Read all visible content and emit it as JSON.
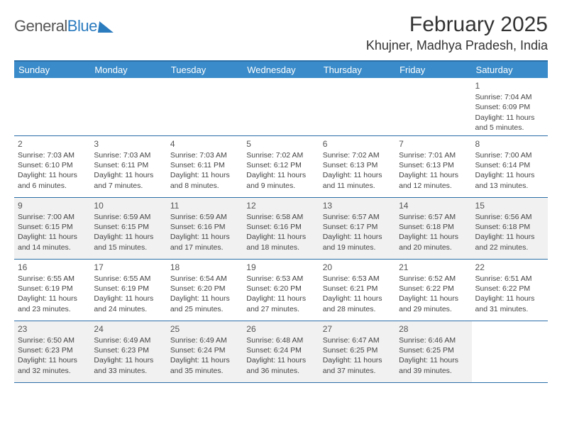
{
  "logo": {
    "text1": "General",
    "text2": "Blue"
  },
  "title": "February 2025",
  "location": "Khujner, Madhya Pradesh, India",
  "colors": {
    "header_bg": "#3a8bc9",
    "border": "#2b6fa8",
    "shaded": "#f1f1f1",
    "text": "#444444",
    "logo_blue": "#2b7bbf"
  },
  "weekdays": [
    "Sunday",
    "Monday",
    "Tuesday",
    "Wednesday",
    "Thursday",
    "Friday",
    "Saturday"
  ],
  "weeks": [
    [
      null,
      null,
      null,
      null,
      null,
      null,
      {
        "n": "1",
        "sr": "Sunrise: 7:04 AM",
        "ss": "Sunset: 6:09 PM",
        "d1": "Daylight: 11 hours",
        "d2": "and 5 minutes."
      }
    ],
    [
      {
        "n": "2",
        "sr": "Sunrise: 7:03 AM",
        "ss": "Sunset: 6:10 PM",
        "d1": "Daylight: 11 hours",
        "d2": "and 6 minutes."
      },
      {
        "n": "3",
        "sr": "Sunrise: 7:03 AM",
        "ss": "Sunset: 6:11 PM",
        "d1": "Daylight: 11 hours",
        "d2": "and 7 minutes."
      },
      {
        "n": "4",
        "sr": "Sunrise: 7:03 AM",
        "ss": "Sunset: 6:11 PM",
        "d1": "Daylight: 11 hours",
        "d2": "and 8 minutes."
      },
      {
        "n": "5",
        "sr": "Sunrise: 7:02 AM",
        "ss": "Sunset: 6:12 PM",
        "d1": "Daylight: 11 hours",
        "d2": "and 9 minutes."
      },
      {
        "n": "6",
        "sr": "Sunrise: 7:02 AM",
        "ss": "Sunset: 6:13 PM",
        "d1": "Daylight: 11 hours",
        "d2": "and 11 minutes."
      },
      {
        "n": "7",
        "sr": "Sunrise: 7:01 AM",
        "ss": "Sunset: 6:13 PM",
        "d1": "Daylight: 11 hours",
        "d2": "and 12 minutes."
      },
      {
        "n": "8",
        "sr": "Sunrise: 7:00 AM",
        "ss": "Sunset: 6:14 PM",
        "d1": "Daylight: 11 hours",
        "d2": "and 13 minutes."
      }
    ],
    [
      {
        "n": "9",
        "sr": "Sunrise: 7:00 AM",
        "ss": "Sunset: 6:15 PM",
        "d1": "Daylight: 11 hours",
        "d2": "and 14 minutes."
      },
      {
        "n": "10",
        "sr": "Sunrise: 6:59 AM",
        "ss": "Sunset: 6:15 PM",
        "d1": "Daylight: 11 hours",
        "d2": "and 15 minutes."
      },
      {
        "n": "11",
        "sr": "Sunrise: 6:59 AM",
        "ss": "Sunset: 6:16 PM",
        "d1": "Daylight: 11 hours",
        "d2": "and 17 minutes."
      },
      {
        "n": "12",
        "sr": "Sunrise: 6:58 AM",
        "ss": "Sunset: 6:16 PM",
        "d1": "Daylight: 11 hours",
        "d2": "and 18 minutes."
      },
      {
        "n": "13",
        "sr": "Sunrise: 6:57 AM",
        "ss": "Sunset: 6:17 PM",
        "d1": "Daylight: 11 hours",
        "d2": "and 19 minutes."
      },
      {
        "n": "14",
        "sr": "Sunrise: 6:57 AM",
        "ss": "Sunset: 6:18 PM",
        "d1": "Daylight: 11 hours",
        "d2": "and 20 minutes."
      },
      {
        "n": "15",
        "sr": "Sunrise: 6:56 AM",
        "ss": "Sunset: 6:18 PM",
        "d1": "Daylight: 11 hours",
        "d2": "and 22 minutes."
      }
    ],
    [
      {
        "n": "16",
        "sr": "Sunrise: 6:55 AM",
        "ss": "Sunset: 6:19 PM",
        "d1": "Daylight: 11 hours",
        "d2": "and 23 minutes."
      },
      {
        "n": "17",
        "sr": "Sunrise: 6:55 AM",
        "ss": "Sunset: 6:19 PM",
        "d1": "Daylight: 11 hours",
        "d2": "and 24 minutes."
      },
      {
        "n": "18",
        "sr": "Sunrise: 6:54 AM",
        "ss": "Sunset: 6:20 PM",
        "d1": "Daylight: 11 hours",
        "d2": "and 25 minutes."
      },
      {
        "n": "19",
        "sr": "Sunrise: 6:53 AM",
        "ss": "Sunset: 6:20 PM",
        "d1": "Daylight: 11 hours",
        "d2": "and 27 minutes."
      },
      {
        "n": "20",
        "sr": "Sunrise: 6:53 AM",
        "ss": "Sunset: 6:21 PM",
        "d1": "Daylight: 11 hours",
        "d2": "and 28 minutes."
      },
      {
        "n": "21",
        "sr": "Sunrise: 6:52 AM",
        "ss": "Sunset: 6:22 PM",
        "d1": "Daylight: 11 hours",
        "d2": "and 29 minutes."
      },
      {
        "n": "22",
        "sr": "Sunrise: 6:51 AM",
        "ss": "Sunset: 6:22 PM",
        "d1": "Daylight: 11 hours",
        "d2": "and 31 minutes."
      }
    ],
    [
      {
        "n": "23",
        "sr": "Sunrise: 6:50 AM",
        "ss": "Sunset: 6:23 PM",
        "d1": "Daylight: 11 hours",
        "d2": "and 32 minutes."
      },
      {
        "n": "24",
        "sr": "Sunrise: 6:49 AM",
        "ss": "Sunset: 6:23 PM",
        "d1": "Daylight: 11 hours",
        "d2": "and 33 minutes."
      },
      {
        "n": "25",
        "sr": "Sunrise: 6:49 AM",
        "ss": "Sunset: 6:24 PM",
        "d1": "Daylight: 11 hours",
        "d2": "and 35 minutes."
      },
      {
        "n": "26",
        "sr": "Sunrise: 6:48 AM",
        "ss": "Sunset: 6:24 PM",
        "d1": "Daylight: 11 hours",
        "d2": "and 36 minutes."
      },
      {
        "n": "27",
        "sr": "Sunrise: 6:47 AM",
        "ss": "Sunset: 6:25 PM",
        "d1": "Daylight: 11 hours",
        "d2": "and 37 minutes."
      },
      {
        "n": "28",
        "sr": "Sunrise: 6:46 AM",
        "ss": "Sunset: 6:25 PM",
        "d1": "Daylight: 11 hours",
        "d2": "and 39 minutes."
      },
      null
    ]
  ],
  "shaded_rows": [
    2,
    4
  ]
}
